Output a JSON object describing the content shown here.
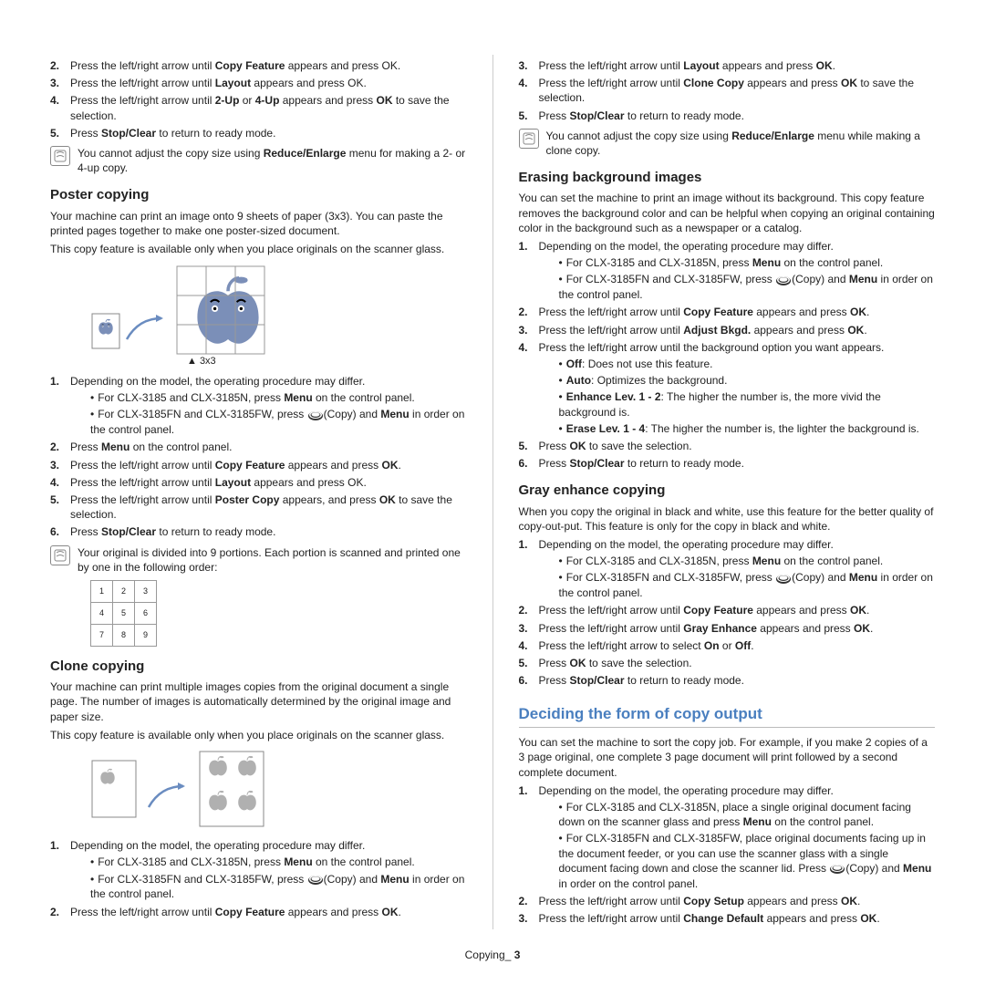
{
  "left": {
    "top_steps": [
      "Press the left/right arrow until <b>Copy Feature</b> appears and press OK.",
      "Press the left/right arrow until <b>Layout</b> appears and press OK.",
      "Press the left/right arrow until <b>2-Up</b> or <b>4-Up</b> appears and press <b>OK</b> to save the selection.",
      "Press <b>Stop/Clear</b> to return to ready mode."
    ],
    "top_note": "You cannot adjust the copy size using <b>Reduce/Enlarge</b> menu for making a 2- or 4-up copy.",
    "poster": {
      "title": "Poster copying",
      "p1": "Your machine can print an image onto 9 sheets of paper (3x3). You can paste the printed pages together to make one poster-sized document.",
      "p2": "This copy feature is available only when you place originals on the scanner glass.",
      "label": "▲ 3x3",
      "step1": "Depending on the model, the operating procedure may differ.",
      "sub1a": "For CLX-3185 and CLX-3185N, press <b>Menu</b> on the control panel.",
      "sub1b_pre": "For CLX-3185FN and CLX-3185FW, press ",
      "sub1b_post": "(Copy) and <b>Menu</b> in order on the control panel.",
      "steps": [
        "Press <b>Menu</b> on the control panel.",
        "Press the left/right arrow until <b>Copy Feature</b> appears and press <b>OK</b>.",
        "Press the left/right arrow until <b>Layout</b> appears and press OK.",
        "Press the left/right arrow until <b>Poster Copy</b> appears, and press <b>OK</b> to save the selection.",
        "Press <b>Stop/Clear</b> to return to ready mode."
      ],
      "note2": "Your original is divided into 9 portions. Each portion is scanned and printed one by one in the following order:",
      "grid": [
        [
          "1",
          "2",
          "3"
        ],
        [
          "4",
          "5",
          "6"
        ],
        [
          "7",
          "8",
          "9"
        ]
      ]
    },
    "clone": {
      "title": "Clone copying",
      "p1": "Your machine can print multiple images copies from the original document a single page. The number of images is automatically determined by the original image and paper size.",
      "p2": "This copy feature is available only when you place originals on the scanner glass.",
      "step1": "Depending on the model, the operating procedure may differ.",
      "sub1a": "For CLX-3185 and CLX-3185N, press <b>Menu</b> on the control panel.",
      "sub1b_pre": "For CLX-3185FN and CLX-3185FW, press ",
      "sub1b_post": "(Copy) and <b>Menu</b> in order on the control panel.",
      "step2": "Press the left/right arrow until <b>Copy Feature</b> appears and press <b>OK</b>."
    }
  },
  "right": {
    "top_steps": [
      "Press the left/right arrow until <b>Layout</b> appears and press <b>OK</b>.",
      "Press the left/right arrow until <b>Clone Copy</b> appears and press <b>OK</b> to save the selection.",
      "Press <b>Stop/Clear</b> to return to ready mode."
    ],
    "top_note": "You cannot adjust the copy size using <b>Reduce/Enlarge</b> menu while making a clone copy.",
    "erase": {
      "title": "Erasing background images",
      "p1": "You can set the machine to print an image without its background. This copy feature removes the background color and can be helpful when copying an original containing color in the background such as a newspaper or a catalog.",
      "step1": "Depending on the model, the operating procedure may differ.",
      "sub1a": "For CLX-3185 and CLX-3185N, press <b>Menu</b> on the control panel.",
      "sub1b_pre": "For CLX-3185FN and CLX-3185FW, press ",
      "sub1b_post": "(Copy) and <b>Menu</b> in order on the control panel.",
      "step2": "Press the left/right arrow until <b>Copy Feature</b> appears and press <b>OK</b>.",
      "step3": "Press the left/right arrow until <b>Adjust Bkgd.</b> appears and press <b>OK</b>.",
      "step4": "Press the left/right arrow until the background option you want appears.",
      "opts": [
        "<b>Off</b>: Does not use this feature.",
        "<b>Auto</b>: Optimizes the background.",
        "<b>Enhance Lev. 1 - 2</b>: The higher the number is, the more vivid the background is.",
        "<b>Erase Lev. 1 - 4</b>: The higher the number is, the lighter the background is."
      ],
      "step5": "Press <b>OK</b> to save the selection.",
      "step6": "Press <b>Stop/Clear</b> to return to ready mode."
    },
    "gray": {
      "title": "Gray enhance copying",
      "p1": "When you copy the original in black and white, use this feature for the better quality of copy-out-put. This feature is only for the copy in black and white.",
      "step1": "Depending on the model, the operating procedure may differ.",
      "sub1a": "For CLX-3185 and CLX-3185N, press <b>Menu</b> on the control panel.",
      "sub1b_pre": "For CLX-3185FN and CLX-3185FW, press ",
      "sub1b_post": "(Copy) and <b>Menu</b> in order on the control panel.",
      "steps": [
        "Press the left/right arrow until <b>Copy Feature</b> appears and press <b>OK</b>.",
        "Press the left/right arrow until <b>Gray Enhance</b> appears and press <b>OK</b>.",
        "Press the left/right arrow to select <b>On</b> or <b>Off</b>.",
        "Press <b>OK</b> to save the selection.",
        "Press <b>Stop/Clear</b> to return to ready mode."
      ]
    },
    "deciding": {
      "title": "Deciding the form of copy output",
      "p1": "You can set the machine to sort the copy job. For example, if you make 2 copies of a 3 page original, one complete 3 page document will print followed by a second complete document.",
      "step1": "Depending on the model, the operating procedure may differ.",
      "sub1a": "For CLX-3185 and CLX-3185N, place a single original document facing down on the scanner glass and press <b>Menu</b> on the control panel.",
      "sub1b_pre": "For CLX-3185FN and CLX-3185FW, place original documents facing up in the document feeder, or you can use the scanner glass with a single document facing down and close the scanner lid. Press ",
      "sub1b_post": "(Copy) and <b>Menu</b> in order on the control panel.",
      "step2": "Press the left/right arrow until <b>Copy Setup</b> appears and press <b>OK</b>.",
      "step3": "Press the left/right arrow until <b>Change Default</b> appears and press <b>OK</b>."
    }
  },
  "footer": {
    "label": "Copying",
    "underscore": "_",
    "num": "3"
  },
  "colors": {
    "heading": "#4a7fbf",
    "appleBlue": "#7b8fb8",
    "appleGray": "#b0b0b0",
    "arrow": "#6a8cc0"
  }
}
